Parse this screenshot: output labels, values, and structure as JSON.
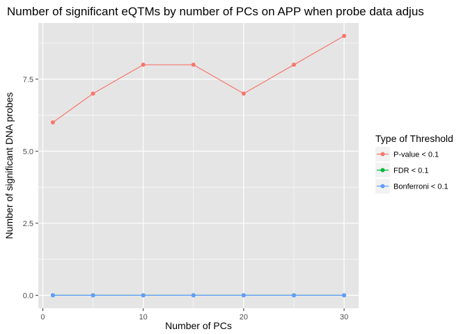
{
  "chart_data": {
    "type": "line",
    "title": "Number of significant eQTMs by number of PCs on APP when probe data adjus",
    "xlabel": "Number of PCs",
    "ylabel": "Number of significant DNA probes",
    "x": [
      1,
      5,
      10,
      15,
      20,
      25,
      30
    ],
    "xlim": [
      -0.45,
      31.45
    ],
    "ylim": [
      -0.45,
      9.45
    ],
    "x_ticks": [
      0,
      10,
      20,
      30
    ],
    "x_tick_labels": [
      "0",
      "10",
      "20",
      "30"
    ],
    "y_ticks": [
      0,
      2.5,
      5,
      7.5
    ],
    "y_tick_labels": [
      "0.0",
      "2.5",
      "5.0",
      "7.5"
    ],
    "grid": true,
    "legend": {
      "title": "Type of Threshold",
      "position": "right"
    },
    "series": [
      {
        "name": "P-value < 0.1",
        "color": "#F8766D",
        "values": [
          6,
          7,
          8,
          8,
          7,
          8,
          9
        ]
      },
      {
        "name": "FDR < 0.1",
        "color": "#00BA38",
        "values": [
          0,
          0,
          0,
          0,
          0,
          0,
          0
        ]
      },
      {
        "name": "Bonferroni < 0.1",
        "color": "#619CFF",
        "values": [
          0,
          0,
          0,
          0,
          0,
          0,
          0
        ]
      }
    ],
    "panel_background": "#E5E5E5",
    "grid_color": "#FFFFFF"
  }
}
